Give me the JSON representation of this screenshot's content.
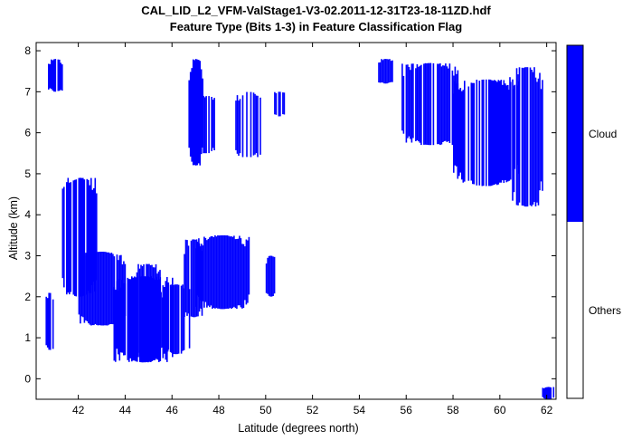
{
  "chart_data": {
    "type": "heatmap",
    "title": "CAL_LID_L2_VFM-ValStage1-V3-02.2011-12-31T23-18-11ZD.hdf",
    "subtitle": "Feature Type (Bits 1-3) in Feature Classification Flag",
    "xlabel": "Latitude (degrees north)",
    "ylabel": "Altitude (km)",
    "xlim": [
      40.2,
      62.4
    ],
    "ylim": [
      -0.5,
      8.2
    ],
    "x_ticks": [
      "42",
      "44",
      "46",
      "48",
      "50",
      "52",
      "54",
      "56",
      "58",
      "60",
      "62"
    ],
    "y_ticks": [
      "0",
      "1",
      "2",
      "3",
      "4",
      "5",
      "6",
      "7",
      "8"
    ],
    "grid": false,
    "colorbar": {
      "labels": [
        "Cloud",
        "Others"
      ],
      "colors": [
        "#0000ff",
        "#ffffff"
      ]
    },
    "cloud_color": "#0000ff",
    "cloud_regions": [
      {
        "x": [
          40.7,
          41.3
        ],
        "y": [
          7.0,
          7.8
        ]
      },
      {
        "x": [
          40.6,
          40.9
        ],
        "y": [
          0.7,
          2.1
        ]
      },
      {
        "x": [
          41.3,
          42.8
        ],
        "y": [
          2.0,
          4.9
        ]
      },
      {
        "x": [
          42.0,
          44.0
        ],
        "y": [
          1.3,
          3.1
        ]
      },
      {
        "x": [
          43.5,
          46.0
        ],
        "y": [
          0.4,
          2.5
        ]
      },
      {
        "x": [
          44.3,
          45.5
        ],
        "y": [
          0.5,
          2.8
        ]
      },
      {
        "x": [
          45.5,
          46.8
        ],
        "y": [
          0.6,
          2.3
        ]
      },
      {
        "x": [
          46.5,
          47.3
        ],
        "y": [
          1.5,
          3.4
        ]
      },
      {
        "x": [
          47.0,
          49.3
        ],
        "y": [
          1.7,
          3.5
        ]
      },
      {
        "x": [
          46.7,
          47.3
        ],
        "y": [
          5.2,
          7.8
        ]
      },
      {
        "x": [
          47.2,
          47.8
        ],
        "y": [
          5.5,
          6.9
        ]
      },
      {
        "x": [
          48.7,
          49.8
        ],
        "y": [
          5.4,
          7.0
        ]
      },
      {
        "x": [
          50.3,
          50.8
        ],
        "y": [
          6.4,
          7.0
        ]
      },
      {
        "x": [
          50.0,
          50.4
        ],
        "y": [
          2.0,
          3.0
        ]
      },
      {
        "x": [
          54.8,
          55.4
        ],
        "y": [
          7.2,
          7.8
        ]
      },
      {
        "x": [
          55.8,
          58.2
        ],
        "y": [
          5.7,
          7.7
        ]
      },
      {
        "x": [
          58.0,
          60.8
        ],
        "y": [
          4.7,
          7.3
        ]
      },
      {
        "x": [
          60.4,
          61.8
        ],
        "y": [
          4.2,
          7.6
        ]
      },
      {
        "x": [
          61.8,
          62.3
        ],
        "y": [
          -0.5,
          -0.2
        ]
      }
    ]
  }
}
